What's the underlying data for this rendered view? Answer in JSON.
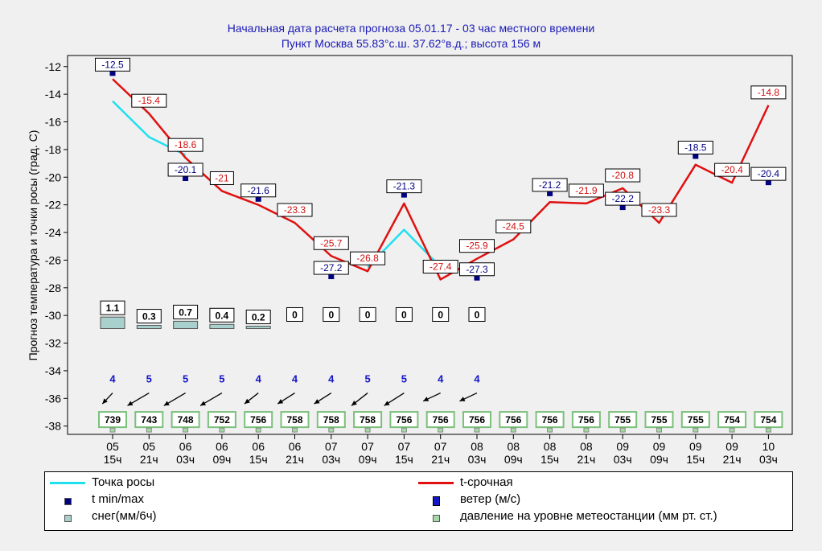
{
  "title": {
    "line1": "Начальная дата расчета прогноза 05.01.17 - 03 час местного времени",
    "line2": "Пункт  Москва  55.83°с.ш.  37.62°в.д.; высота 156 м"
  },
  "chart_data": {
    "type": "line",
    "ylabel": "Прогноз температура и точки росы (град. C)",
    "ylim": [
      -38.6,
      -11.2
    ],
    "yticks": [
      -12,
      -14,
      -16,
      -18,
      -20,
      -22,
      -24,
      -26,
      -28,
      -30,
      -32,
      -34,
      -36,
      -38
    ],
    "x_days": [
      "05",
      "05",
      "06",
      "06",
      "06",
      "06",
      "07",
      "07",
      "07",
      "07",
      "08",
      "08",
      "08",
      "08",
      "09",
      "09",
      "09",
      "09",
      "10"
    ],
    "x_hours": [
      "15ч",
      "21ч",
      "03ч",
      "09ч",
      "15ч",
      "21ч",
      "03ч",
      "09ч",
      "15ч",
      "21ч",
      "03ч",
      "09ч",
      "15ч",
      "21ч",
      "03ч",
      "09ч",
      "15ч",
      "21ч",
      "03ч"
    ],
    "series": [
      {
        "name": "t-срочная",
        "color": "#e01010",
        "values": [
          -12.9,
          -15.4,
          -18.6,
          -21.0,
          -22.0,
          -23.3,
          -25.7,
          -26.8,
          -21.9,
          -27.4,
          -25.9,
          -24.5,
          -21.8,
          -21.9,
          -20.8,
          -23.3,
          -19.1,
          -20.4,
          -14.8
        ]
      },
      {
        "name": "Точка росы",
        "color": "#20e0f0",
        "values": [
          -14.5,
          -17.1,
          -18.4,
          null,
          null,
          null,
          null,
          -26.5,
          -23.8,
          -26.5,
          null,
          null,
          null,
          null,
          null,
          null,
          null,
          null,
          null
        ]
      }
    ],
    "t_labels": [
      {
        "i": 1,
        "text": "-15.4"
      },
      {
        "i": 2,
        "text": "-18.6"
      },
      {
        "i": 3,
        "text": "-21"
      },
      {
        "i": 5,
        "text": "-23.3"
      },
      {
        "i": 6,
        "text": "-25.7"
      },
      {
        "i": 7,
        "text": "-26.8"
      },
      {
        "i": 9,
        "text": "-27.4"
      },
      {
        "i": 10,
        "text": "-25.9"
      },
      {
        "i": 11,
        "text": "-24.5"
      },
      {
        "i": 13,
        "text": "-21.9"
      },
      {
        "i": 14,
        "text": "-20.8"
      },
      {
        "i": 15,
        "text": "-23.3"
      },
      {
        "i": 17,
        "text": "-20.4"
      },
      {
        "i": 18,
        "text": "-14.8"
      }
    ],
    "minmax": [
      {
        "i": 0,
        "value": -12.5,
        "text": "-12.5"
      },
      {
        "i": 2,
        "value": -20.1,
        "text": "-20.1"
      },
      {
        "i": 4,
        "value": -21.6,
        "text": "-21.6"
      },
      {
        "i": 6,
        "value": -27.2,
        "text": "-27.2"
      },
      {
        "i": 8,
        "value": -21.3,
        "text": "-21.3"
      },
      {
        "i": 10,
        "value": -27.3,
        "text": "-27.3"
      },
      {
        "i": 12,
        "value": -21.2,
        "text": "-21.2"
      },
      {
        "i": 14,
        "value": -22.2,
        "text": "-22.2"
      },
      {
        "i": 16,
        "value": -18.5,
        "text": "-18.5"
      },
      {
        "i": 18,
        "value": -20.4,
        "text": "-20.4"
      }
    ],
    "snow": [
      "1.1",
      "0.3",
      "0.7",
      "0.4",
      "0.2",
      "0",
      "0",
      "0",
      "0",
      "0",
      "0"
    ],
    "snow_values": [
      1.1,
      0.3,
      0.7,
      0.4,
      0.2,
      0,
      0,
      0,
      0,
      0,
      0
    ],
    "wind": [
      {
        "speed": "4",
        "dir": 245
      },
      {
        "speed": "5",
        "dir": 220
      },
      {
        "speed": "5",
        "dir": 220
      },
      {
        "speed": "5",
        "dir": 220
      },
      {
        "speed": "4",
        "dir": 235
      },
      {
        "speed": "4",
        "dir": 225
      },
      {
        "speed": "4",
        "dir": 225
      },
      {
        "speed": "5",
        "dir": 235
      },
      {
        "speed": "5",
        "dir": 225
      },
      {
        "speed": "4",
        "dir": 250
      },
      {
        "speed": "4",
        "dir": 250
      }
    ],
    "pressure": [
      "739",
      "743",
      "748",
      "752",
      "756",
      "758",
      "758",
      "758",
      "756",
      "756",
      "756",
      "756",
      "756",
      "756",
      "755",
      "755",
      "755",
      "754",
      "754"
    ],
    "colors": {
      "axis": "#000000",
      "minmax_marker": "#000080",
      "snow_fill": "#a8d0cc",
      "pressure_border": "#7cc07c",
      "wind_text": "#1414c8",
      "title": "#1a1ab8"
    }
  },
  "legend": {
    "dew": "Точка росы",
    "t": "t-срочная",
    "tminmax": "t min/max",
    "wind": "ветер (м/с)",
    "snow": "снег(мм/6ч)",
    "pressure": "давление на уровне метеостанции (мм рт. ст.)"
  }
}
